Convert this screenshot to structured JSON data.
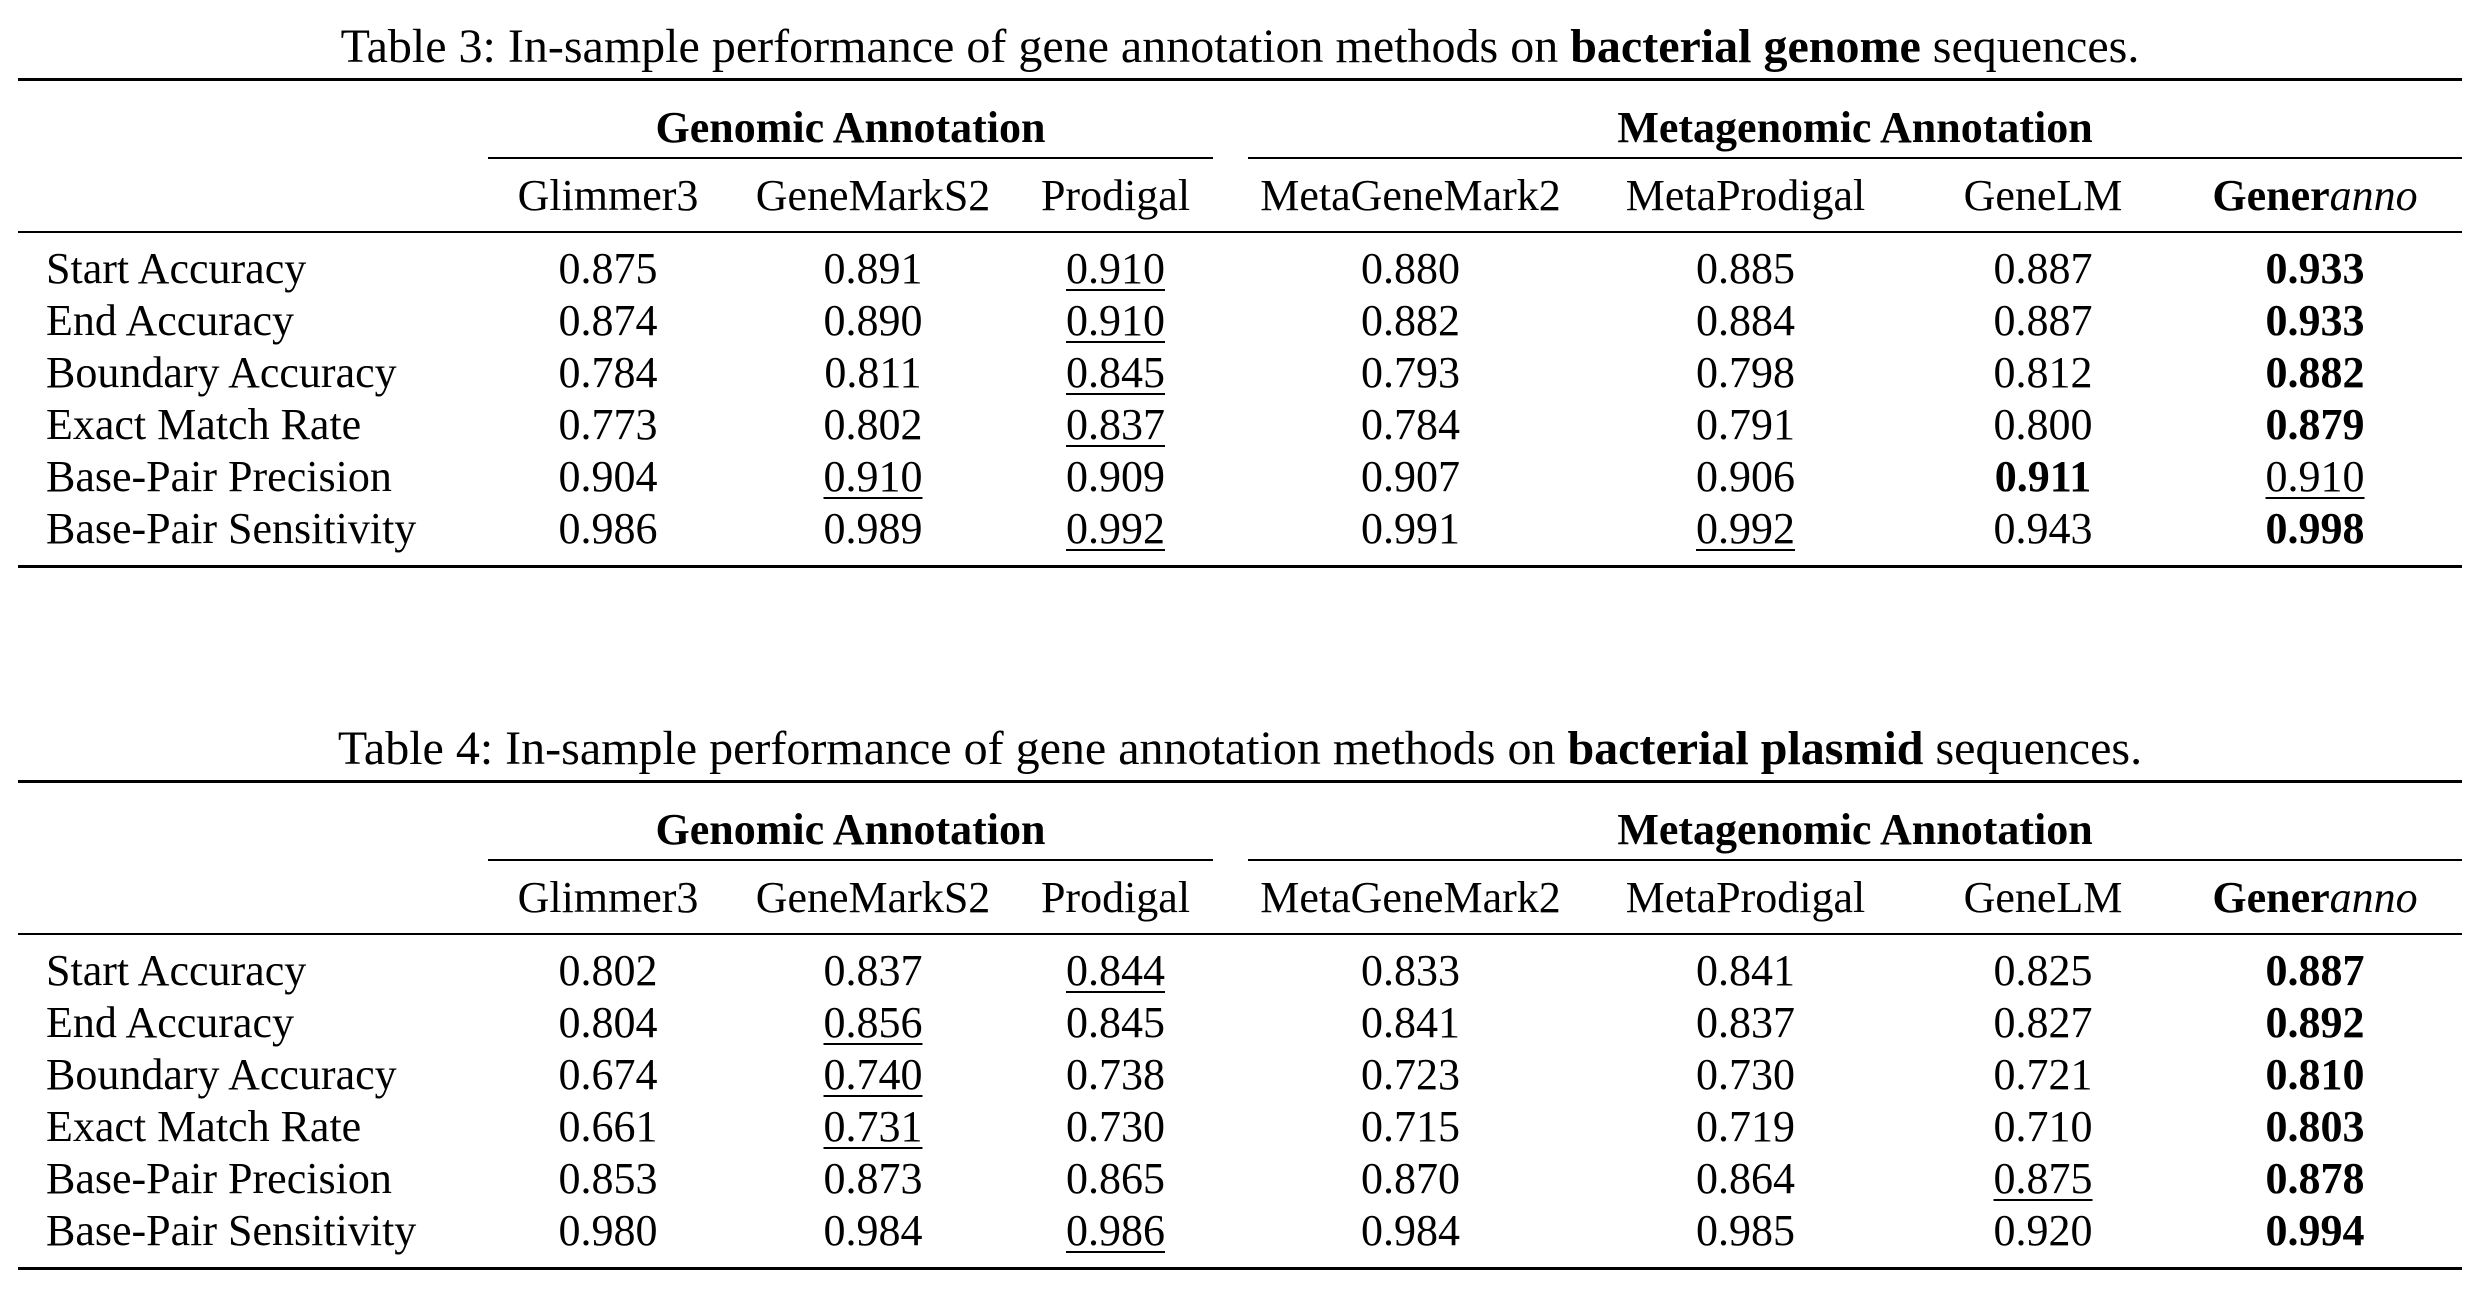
{
  "tables": [
    {
      "caption_prefix": "Table 3: In-sample performance of gene annotation methods on ",
      "caption_bold": "bacterial genome",
      "caption_suffix": " sequences.",
      "groups": [
        "Genomic Annotation",
        "Metagenomic Annotation"
      ],
      "methods": [
        "Glimmer3",
        "GeneMarkS2",
        "Prodigal",
        "MetaGeneMark2",
        "MetaProdigal",
        "GeneLM"
      ],
      "last_method_bold": "Gener",
      "last_method_italic": "anno",
      "rows": [
        {
          "metric": "Start Accuracy",
          "values": [
            "0.875",
            "0.891",
            "0.910",
            "0.880",
            "0.885",
            "0.887",
            "0.933"
          ]
        },
        {
          "metric": "End Accuracy",
          "values": [
            "0.874",
            "0.890",
            "0.910",
            "0.882",
            "0.884",
            "0.887",
            "0.933"
          ]
        },
        {
          "metric": "Boundary Accuracy",
          "values": [
            "0.784",
            "0.811",
            "0.845",
            "0.793",
            "0.798",
            "0.812",
            "0.882"
          ]
        },
        {
          "metric": "Exact Match Rate",
          "values": [
            "0.773",
            "0.802",
            "0.837",
            "0.784",
            "0.791",
            "0.800",
            "0.879"
          ]
        },
        {
          "metric": "Base-Pair Precision",
          "values": [
            "0.904",
            "0.910",
            "0.909",
            "0.907",
            "0.906",
            "0.911",
            "0.910"
          ]
        },
        {
          "metric": "Base-Pair Sensitivity",
          "values": [
            "0.986",
            "0.989",
            "0.992",
            "0.991",
            "0.992",
            "0.943",
            "0.998"
          ]
        }
      ]
    },
    {
      "caption_prefix": "Table 4: In-sample performance of gene annotation methods on ",
      "caption_bold": "bacterial plasmid",
      "caption_suffix": " sequences.",
      "groups": [
        "Genomic Annotation",
        "Metagenomic Annotation"
      ],
      "methods": [
        "Glimmer3",
        "GeneMarkS2",
        "Prodigal",
        "MetaGeneMark2",
        "MetaProdigal",
        "GeneLM"
      ],
      "last_method_bold": "Gener",
      "last_method_italic": "anno",
      "rows": [
        {
          "metric": "Start Accuracy",
          "values": [
            "0.802",
            "0.837",
            "0.844",
            "0.833",
            "0.841",
            "0.825",
            "0.887"
          ]
        },
        {
          "metric": "End Accuracy",
          "values": [
            "0.804",
            "0.856",
            "0.845",
            "0.841",
            "0.837",
            "0.827",
            "0.892"
          ]
        },
        {
          "metric": "Boundary Accuracy",
          "values": [
            "0.674",
            "0.740",
            "0.738",
            "0.723",
            "0.730",
            "0.721",
            "0.810"
          ]
        },
        {
          "metric": "Exact Match Rate",
          "values": [
            "0.661",
            "0.731",
            "0.730",
            "0.715",
            "0.719",
            "0.710",
            "0.803"
          ]
        },
        {
          "metric": "Base-Pair Precision",
          "values": [
            "0.853",
            "0.873",
            "0.865",
            "0.870",
            "0.864",
            "0.875",
            "0.878"
          ]
        },
        {
          "metric": "Base-Pair Sensitivity",
          "values": [
            "0.980",
            "0.984",
            "0.986",
            "0.984",
            "0.985",
            "0.920",
            "0.994"
          ]
        }
      ]
    }
  ]
}
